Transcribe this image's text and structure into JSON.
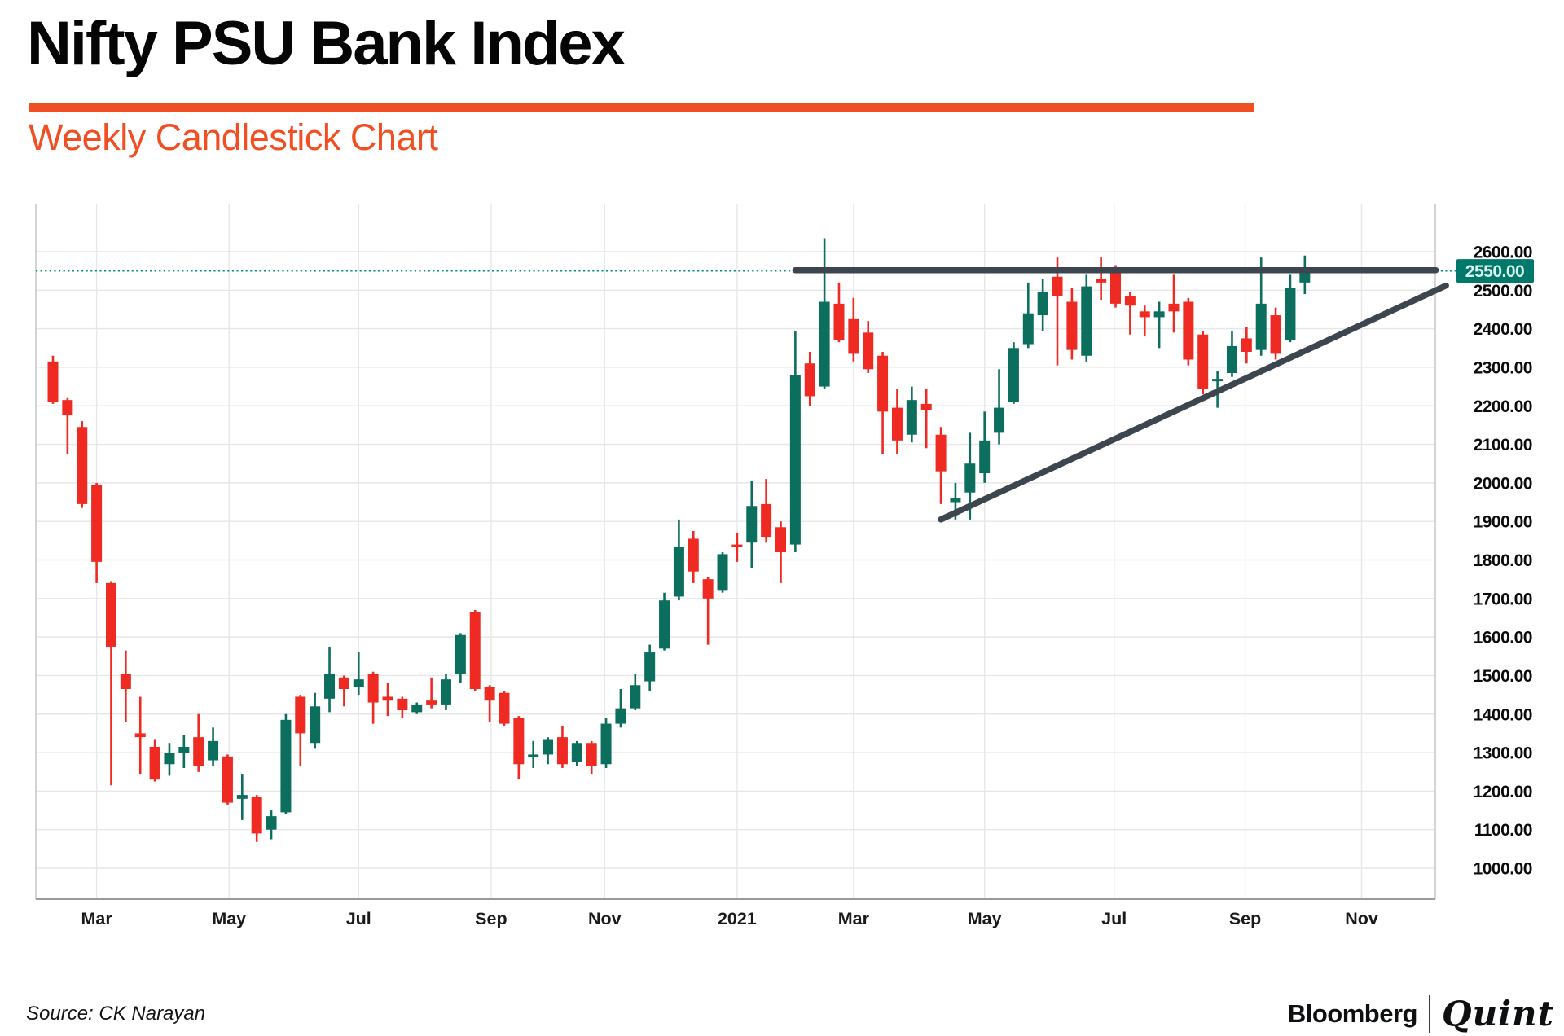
{
  "header": {
    "title": "Nifty PSU Bank Index",
    "subtitle": "Weekly Candlestick Chart",
    "accent_color": "#F04E23"
  },
  "footer": {
    "source": "Source: CK Narayan",
    "logo": {
      "bloomberg": "Bloomberg",
      "separator": "|",
      "quint": "Quint"
    }
  },
  "chart_data": {
    "type": "candlestick",
    "series_name": "Nifty PSU Bank Index",
    "interval": "weekly",
    "title": "Nifty PSU Bank Index",
    "subtitle": "Weekly Candlestick Chart",
    "y_axis": {
      "min": 1000,
      "max": 2600,
      "step": 100,
      "ticks": [
        "2600.00",
        "2500.00",
        "2400.00",
        "2300.00",
        "2200.00",
        "2100.00",
        "2000.00",
        "1900.00",
        "1800.00",
        "1700.00",
        "1600.00",
        "1500.00",
        "1400.00",
        "1300.00",
        "1200.00",
        "1100.00",
        "1000.00"
      ],
      "grid": true,
      "position": "right"
    },
    "x_axis": {
      "ticks": [
        {
          "label": "Mar",
          "week": 3.0,
          "bold": false
        },
        {
          "label": "May",
          "week": 12.1,
          "bold": false
        },
        {
          "label": "Jul",
          "week": 21.0,
          "bold": false
        },
        {
          "label": "Sep",
          "week": 30.1,
          "bold": false
        },
        {
          "label": "Nov",
          "week": 37.9,
          "bold": false
        },
        {
          "label": "2021",
          "week": 47.0,
          "bold": true
        },
        {
          "label": "Mar",
          "week": 55.0,
          "bold": false
        },
        {
          "label": "May",
          "week": 64.0,
          "bold": false
        },
        {
          "label": "Jul",
          "week": 72.9,
          "bold": false
        },
        {
          "label": "Sep",
          "week": 81.9,
          "bold": false
        },
        {
          "label": "Nov",
          "week": 89.9,
          "bold": false
        }
      ],
      "grid": true
    },
    "last_price": {
      "label": "2550.00",
      "value": 2550
    },
    "trendlines": [
      {
        "name": "horizontal-resistance",
        "week1": 51.0,
        "price1": 2552,
        "week2": 95.0,
        "price2": 2552
      },
      {
        "name": "ascending-support",
        "week1": 61.0,
        "price1": 1905,
        "week2": 95.7,
        "price2": 2512
      }
    ],
    "dotted_price_line": 2550,
    "candles_ohlc": [
      [
        2315,
        2330,
        2205,
        2210
      ],
      [
        2215,
        2220,
        2075,
        2175
      ],
      [
        2145,
        2160,
        1935,
        1945
      ],
      [
        1995,
        2000,
        1740,
        1795
      ],
      [
        1740,
        1745,
        1215,
        1575
      ],
      [
        1505,
        1565,
        1380,
        1465
      ],
      [
        1350,
        1445,
        1245,
        1340
      ],
      [
        1315,
        1335,
        1225,
        1230
      ],
      [
        1270,
        1325,
        1240,
        1300
      ],
      [
        1300,
        1345,
        1260,
        1315
      ],
      [
        1340,
        1400,
        1250,
        1265
      ],
      [
        1280,
        1365,
        1265,
        1330
      ],
      [
        1290,
        1295,
        1165,
        1170
      ],
      [
        1180,
        1245,
        1125,
        1190
      ],
      [
        1185,
        1190,
        1068,
        1090
      ],
      [
        1100,
        1150,
        1075,
        1135
      ],
      [
        1145,
        1400,
        1140,
        1385
      ],
      [
        1445,
        1450,
        1265,
        1350
      ],
      [
        1325,
        1455,
        1310,
        1420
      ],
      [
        1440,
        1575,
        1405,
        1505
      ],
      [
        1495,
        1500,
        1420,
        1465
      ],
      [
        1470,
        1560,
        1450,
        1490
      ],
      [
        1505,
        1510,
        1375,
        1430
      ],
      [
        1445,
        1480,
        1395,
        1435
      ],
      [
        1440,
        1445,
        1390,
        1410
      ],
      [
        1405,
        1430,
        1400,
        1425
      ],
      [
        1435,
        1495,
        1415,
        1425
      ],
      [
        1425,
        1505,
        1410,
        1490
      ],
      [
        1505,
        1610,
        1480,
        1605
      ],
      [
        1665,
        1670,
        1460,
        1465
      ],
      [
        1470,
        1475,
        1380,
        1435
      ],
      [
        1455,
        1460,
        1370,
        1375
      ],
      [
        1390,
        1395,
        1230,
        1270
      ],
      [
        1290,
        1330,
        1260,
        1295
      ],
      [
        1295,
        1340,
        1270,
        1335
      ],
      [
        1340,
        1370,
        1260,
        1270
      ],
      [
        1275,
        1330,
        1265,
        1325
      ],
      [
        1325,
        1330,
        1245,
        1265
      ],
      [
        1270,
        1390,
        1260,
        1375
      ],
      [
        1375,
        1465,
        1365,
        1415
      ],
      [
        1415,
        1505,
        1410,
        1475
      ],
      [
        1485,
        1580,
        1460,
        1560
      ],
      [
        1570,
        1715,
        1565,
        1695
      ],
      [
        1705,
        1905,
        1695,
        1835
      ],
      [
        1855,
        1875,
        1740,
        1770
      ],
      [
        1750,
        1755,
        1580,
        1700
      ],
      [
        1720,
        1820,
        1715,
        1815
      ],
      [
        1840,
        1870,
        1795,
        1835
      ],
      [
        1845,
        2005,
        1780,
        1940
      ],
      [
        1945,
        2010,
        1845,
        1860
      ],
      [
        1885,
        1900,
        1740,
        1820
      ],
      [
        1840,
        2395,
        1820,
        2280
      ],
      [
        2310,
        2340,
        2200,
        2225
      ],
      [
        2250,
        2635,
        2245,
        2470
      ],
      [
        2465,
        2520,
        2365,
        2370
      ],
      [
        2425,
        2480,
        2315,
        2335
      ],
      [
        2390,
        2420,
        2285,
        2295
      ],
      [
        2330,
        2340,
        2075,
        2185
      ],
      [
        2195,
        2245,
        2075,
        2110
      ],
      [
        2125,
        2250,
        2105,
        2215
      ],
      [
        2205,
        2245,
        2090,
        2190
      ],
      [
        2125,
        2145,
        1945,
        2030
      ],
      [
        1950,
        2000,
        1905,
        1960
      ],
      [
        1975,
        2130,
        1905,
        2050
      ],
      [
        2025,
        2185,
        2000,
        2110
      ],
      [
        2130,
        2295,
        2100,
        2195
      ],
      [
        2210,
        2365,
        2205,
        2350
      ],
      [
        2360,
        2520,
        2350,
        2440
      ],
      [
        2435,
        2530,
        2395,
        2495
      ],
      [
        2535,
        2585,
        2305,
        2485
      ],
      [
        2470,
        2505,
        2320,
        2345
      ],
      [
        2330,
        2540,
        2315,
        2510
      ],
      [
        2530,
        2585,
        2475,
        2520
      ],
      [
        2545,
        2565,
        2455,
        2465
      ],
      [
        2485,
        2495,
        2385,
        2460
      ],
      [
        2445,
        2460,
        2380,
        2430
      ],
      [
        2430,
        2470,
        2350,
        2445
      ],
      [
        2465,
        2540,
        2390,
        2445
      ],
      [
        2470,
        2480,
        2305,
        2320
      ],
      [
        2385,
        2395,
        2230,
        2245
      ],
      [
        2265,
        2290,
        2195,
        2270
      ],
      [
        2285,
        2395,
        2275,
        2355
      ],
      [
        2375,
        2405,
        2310,
        2340
      ],
      [
        2345,
        2585,
        2330,
        2465
      ],
      [
        2435,
        2455,
        2320,
        2335
      ],
      [
        2370,
        2540,
        2365,
        2505
      ],
      [
        2520,
        2590,
        2490,
        2550
      ]
    ],
    "colors": {
      "up": "#0C6E5C",
      "down": "#EE2A23",
      "trendline": "#3D464F",
      "dotted_line": "#00917F",
      "price_label_bg": "#00796B",
      "price_label_text": "#DCF3EF",
      "grid": "#E7E7E7",
      "axis_side": "#C9C9C9",
      "axis_bottom": "#9B9B9B",
      "y_tick_text": "#0B0B0B",
      "x_tick_text": "#1A1A1A"
    }
  }
}
